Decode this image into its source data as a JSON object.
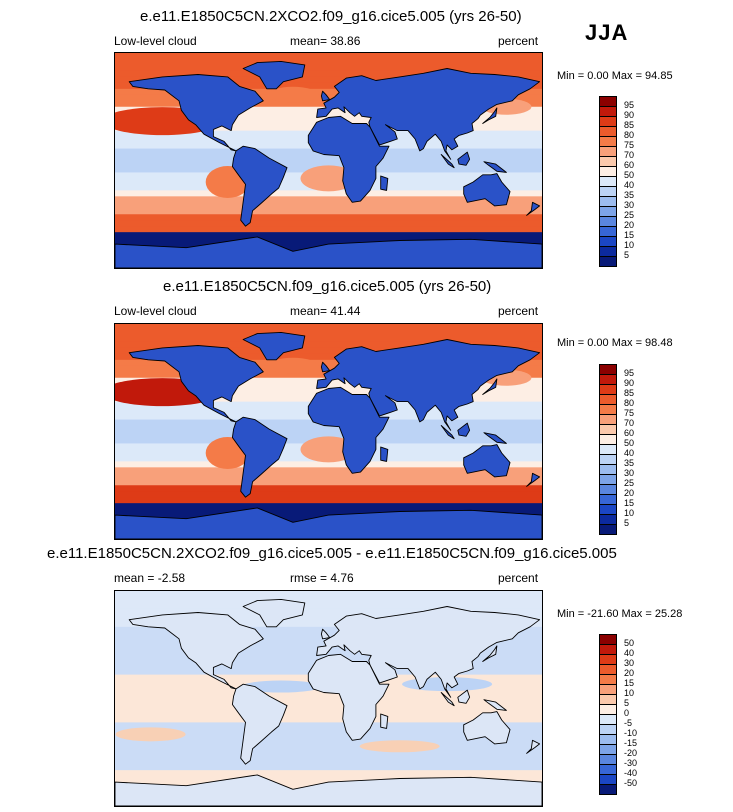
{
  "season": "JJA",
  "chart_data": [
    {
      "type": "heatmap",
      "title": "e.e11.E1850C5CN.2XCO2.f09_g16.cice5.005 (yrs 26-50)",
      "variable": "Low-level cloud",
      "mean_label": "mean=  38.86",
      "units": "percent",
      "minmax": "Min =   0.00 Max =  94.85",
      "min": 0.0,
      "max": 94.85,
      "mean": 38.86,
      "colorbar_levels": [
        "95",
        "90",
        "85",
        "80",
        "75",
        "70",
        "60",
        "50",
        "40",
        "35",
        "30",
        "25",
        "20",
        "15",
        "10",
        "5"
      ],
      "colorbar_colors": [
        "#8b0000",
        "#c1190b",
        "#de3b17",
        "#ec5b2c",
        "#f47b48",
        "#f8a07a",
        "#fbc9ac",
        "#fdeee4",
        "#dce9f9",
        "#bcd3f5",
        "#9cbcef",
        "#7da4e8",
        "#5a86df",
        "#3766d6",
        "#1b46c4",
        "#0c2a9e",
        "#081a78"
      ],
      "colormap": "blue-white-red sequential",
      "projection": "cylindrical equidistant, global"
    },
    {
      "type": "heatmap",
      "title": "e.e11.E1850C5CN.f09_g16.cice5.005 (yrs 26-50)",
      "variable": "Low-level cloud",
      "mean_label": "mean=  41.44",
      "units": "percent",
      "minmax": "Min =   0.00 Max =  98.48",
      "min": 0.0,
      "max": 98.48,
      "mean": 41.44,
      "colorbar_levels": [
        "95",
        "90",
        "85",
        "80",
        "75",
        "70",
        "60",
        "50",
        "40",
        "35",
        "30",
        "25",
        "20",
        "15",
        "10",
        "5"
      ],
      "colorbar_colors": [
        "#8b0000",
        "#c1190b",
        "#de3b17",
        "#ec5b2c",
        "#f47b48",
        "#f8a07a",
        "#fbc9ac",
        "#fdeee4",
        "#dce9f9",
        "#bcd3f5",
        "#9cbcef",
        "#7da4e8",
        "#5a86df",
        "#3766d6",
        "#1b46c4",
        "#0c2a9e",
        "#081a78"
      ],
      "colormap": "blue-white-red sequential",
      "projection": "cylindrical equidistant, global"
    },
    {
      "type": "heatmap",
      "title": "e.e11.E1850C5CN.2XCO2.f09_g16.cice5.005 - e.e11.E1850C5CN.f09_g16.cice5.005",
      "variable": "",
      "mean_label": "mean =  -2.58",
      "rmse_label": "rmse =   4.76",
      "units": "percent",
      "minmax": "Min = -21.60 Max =  25.28",
      "min": -21.6,
      "max": 25.28,
      "mean": -2.58,
      "rmse": 4.76,
      "colorbar_levels": [
        "50",
        "40",
        "30",
        "20",
        "15",
        "10",
        "5",
        "0",
        "-5",
        "-10",
        "-15",
        "-20",
        "-30",
        "-40",
        "-50"
      ],
      "colorbar_colors": [
        "#8b0000",
        "#c1190b",
        "#de3b17",
        "#ec5b2c",
        "#f47b48",
        "#f8a07a",
        "#fbc9ac",
        "#fdeee4",
        "#dce9f9",
        "#bcd3f5",
        "#9cbcef",
        "#7da4e8",
        "#5a86df",
        "#3766d6",
        "#1b46c4",
        "#081a78"
      ],
      "colormap": "blue-white-red diverging",
      "projection": "cylindrical equidistant, global"
    }
  ]
}
